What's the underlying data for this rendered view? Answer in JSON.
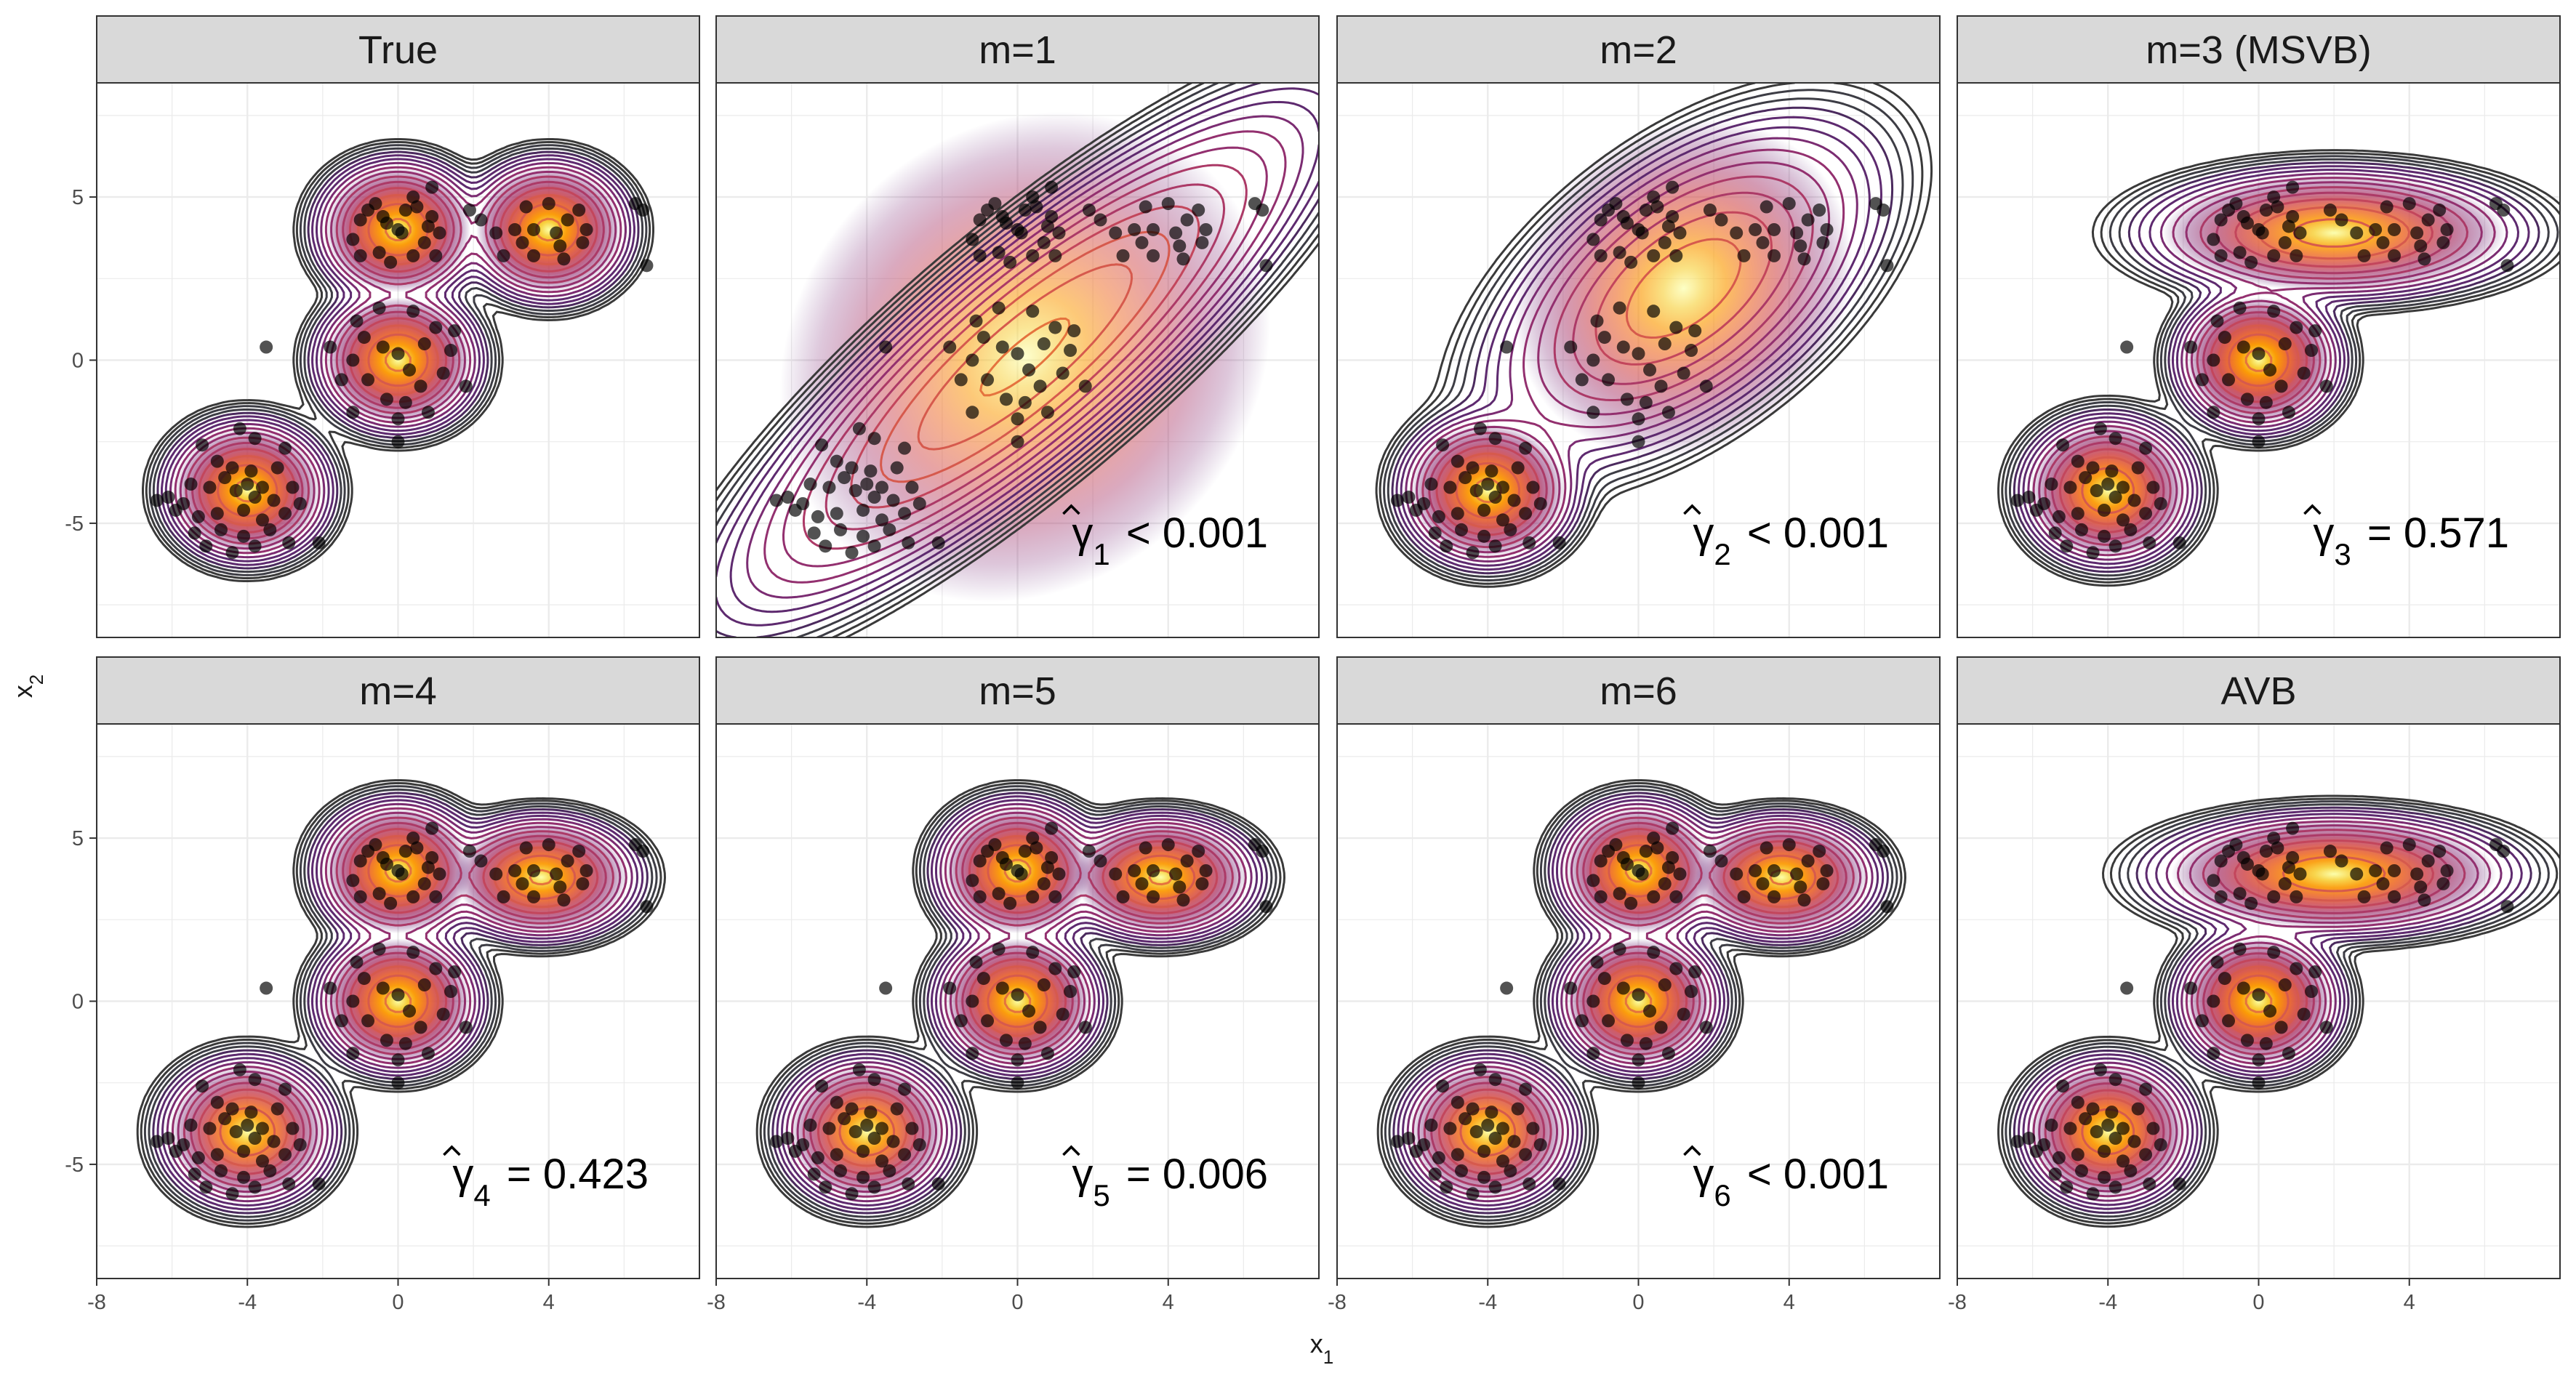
{
  "chart_data": {
    "type": "contour-scatter-facets",
    "xlabel": "x",
    "xlabel_sub": "1",
    "ylabel": "x",
    "ylabel_sub": "2",
    "xlim": [
      -8,
      8
    ],
    "ylim": [
      -8.5,
      8.5
    ],
    "x_ticks": [
      -8,
      -4,
      0,
      4
    ],
    "y_ticks": [
      -5,
      0,
      5
    ],
    "grid": true,
    "palette": [
      "#000004",
      "#1b0c41",
      "#4a0c6b",
      "#781c6d",
      "#a52c60",
      "#cf4446",
      "#ed6925",
      "#fb9b06",
      "#f7d13d",
      "#fcffa4"
    ],
    "panels": [
      {
        "title": "True",
        "annotation": null,
        "components": [
          {
            "mean": [
              0,
              4
            ],
            "sd": [
              0.8,
              0.8
            ],
            "rho": 0,
            "weight": 0.25
          },
          {
            "mean": [
              4,
              4
            ],
            "sd": [
              0.8,
              0.8
            ],
            "rho": 0,
            "weight": 0.25
          },
          {
            "mean": [
              0,
              0
            ],
            "sd": [
              0.8,
              0.8
            ],
            "rho": 0,
            "weight": 0.25
          },
          {
            "mean": [
              -4,
              -4
            ],
            "sd": [
              0.8,
              0.8
            ],
            "rho": 0,
            "weight": 0.25
          }
        ]
      },
      {
        "title": "m=1",
        "annotation": {
          "symbol": "γ",
          "sub": "1",
          "rel": "<",
          "value": "0.001"
        },
        "components": [
          {
            "mean": [
              0.2,
              0.1
            ],
            "sd": [
              2.9,
              2.9
            ],
            "rho": 0.86,
            "weight": 1
          }
        ]
      },
      {
        "title": "m=2",
        "annotation": {
          "symbol": "γ",
          "sub": "2",
          "rel": "<",
          "value": "0.001"
        },
        "components": [
          {
            "mean": [
              1.2,
              2.2
            ],
            "sd": [
              2.0,
              2.0
            ],
            "rho": 0.55,
            "weight": 0.72
          },
          {
            "mean": [
              -4,
              -4
            ],
            "sd": [
              0.85,
              0.85
            ],
            "rho": 0,
            "weight": 0.28
          }
        ]
      },
      {
        "title": "m=3 (MSVB)",
        "annotation": {
          "symbol": "γ",
          "sub": "3",
          "rel": "=",
          "value": "0.571"
        },
        "components": [
          {
            "mean": [
              2,
              3.9
            ],
            "sd": [
              1.9,
              0.75
            ],
            "rho": 0,
            "weight": 0.45
          },
          {
            "mean": [
              0,
              0
            ],
            "sd": [
              0.8,
              0.8
            ],
            "rho": 0,
            "weight": 0.28
          },
          {
            "mean": [
              -4,
              -4
            ],
            "sd": [
              0.85,
              0.85
            ],
            "rho": 0,
            "weight": 0.27
          }
        ]
      },
      {
        "title": "m=4",
        "annotation": {
          "symbol": "γ",
          "sub": "4",
          "rel": "=",
          "value": "0.423"
        },
        "components": [
          {
            "mean": [
              0,
              4
            ],
            "sd": [
              0.8,
              0.8
            ],
            "rho": 0,
            "weight": 0.25
          },
          {
            "mean": [
              3.8,
              3.8
            ],
            "sd": [
              0.95,
              0.7
            ],
            "rho": 0,
            "weight": 0.25
          },
          {
            "mean": [
              0,
              0
            ],
            "sd": [
              0.8,
              0.8
            ],
            "rho": 0,
            "weight": 0.25
          },
          {
            "mean": [
              -4,
              -4
            ],
            "sd": [
              0.85,
              0.85
            ],
            "rho": 0,
            "weight": 0.25
          }
        ]
      },
      {
        "title": "m=5",
        "annotation": {
          "symbol": "γ",
          "sub": "5",
          "rel": "=",
          "value": "0.006"
        },
        "components": [
          {
            "mean": [
              0,
              4
            ],
            "sd": [
              0.8,
              0.8
            ],
            "rho": 0,
            "weight": 0.25
          },
          {
            "mean": [
              3.8,
              3.8
            ],
            "sd": [
              0.95,
              0.7
            ],
            "rho": 0,
            "weight": 0.25
          },
          {
            "mean": [
              0,
              0
            ],
            "sd": [
              0.8,
              0.8
            ],
            "rho": 0,
            "weight": 0.25
          },
          {
            "mean": [
              -4,
              -4
            ],
            "sd": [
              0.85,
              0.85
            ],
            "rho": 0,
            "weight": 0.25
          }
        ]
      },
      {
        "title": "m=6",
        "annotation": {
          "symbol": "γ",
          "sub": "6",
          "rel": "<",
          "value": "0.001"
        },
        "components": [
          {
            "mean": [
              0,
              4
            ],
            "sd": [
              0.8,
              0.8
            ],
            "rho": 0,
            "weight": 0.25
          },
          {
            "mean": [
              3.8,
              3.8
            ],
            "sd": [
              0.95,
              0.7
            ],
            "rho": 0,
            "weight": 0.25
          },
          {
            "mean": [
              0,
              0
            ],
            "sd": [
              0.8,
              0.8
            ],
            "rho": 0,
            "weight": 0.25
          },
          {
            "mean": [
              -4,
              -4
            ],
            "sd": [
              0.85,
              0.85
            ],
            "rho": 0,
            "weight": 0.25
          }
        ]
      },
      {
        "title": "AVB",
        "annotation": null,
        "components": [
          {
            "mean": [
              2,
              3.9
            ],
            "sd": [
              1.8,
              0.7
            ],
            "rho": 0,
            "weight": 0.45
          },
          {
            "mean": [
              0,
              0
            ],
            "sd": [
              0.8,
              0.8
            ],
            "rho": 0,
            "weight": 0.28
          },
          {
            "mean": [
              -4,
              -4
            ],
            "sd": [
              0.85,
              0.85
            ],
            "rho": 0,
            "weight": 0.27
          }
        ]
      }
    ],
    "points": [
      [
        -0.6,
        4.8
      ],
      [
        0.5,
        4.7
      ],
      [
        -1,
        4.3
      ],
      [
        -0.8,
        4.6
      ],
      [
        -0.3,
        4.2
      ],
      [
        0,
        4
      ],
      [
        0.1,
        3.9
      ],
      [
        0.9,
        4.4
      ],
      [
        1.1,
        3.9
      ],
      [
        -1.2,
        3.7
      ],
      [
        -0.5,
        3.3
      ],
      [
        0.4,
        3.2
      ],
      [
        0.7,
        3.6
      ],
      [
        -1.0,
        3.2
      ],
      [
        0.2,
        4.6
      ],
      [
        1.0,
        3.2
      ],
      [
        -0.2,
        3.0
      ],
      [
        0.4,
        5.0
      ],
      [
        0.8,
        4.1
      ],
      [
        -0.4,
        4.4
      ],
      [
        0.9,
        5.3
      ],
      [
        1.9,
        4.6
      ],
      [
        2.2,
        4.3
      ],
      [
        3.4,
        4.7
      ],
      [
        4.0,
        4.8
      ],
      [
        4.8,
        4.6
      ],
      [
        3.1,
        4.0
      ],
      [
        3.6,
        4.0
      ],
      [
        4.2,
        3.9
      ],
      [
        4.5,
        4.3
      ],
      [
        5.0,
        4.0
      ],
      [
        3.3,
        3.6
      ],
      [
        4.3,
        3.5
      ],
      [
        3.6,
        3.2
      ],
      [
        4.4,
        3.1
      ],
      [
        2.8,
        3.2
      ],
      [
        2.6,
        3.9
      ],
      [
        4.9,
        3.6
      ],
      [
        6.3,
        4.8
      ],
      [
        6.5,
        4.6
      ],
      [
        6.6,
        2.9
      ],
      [
        -1.8,
        0.4
      ],
      [
        -1.1,
        1.2
      ],
      [
        -0.5,
        1.6
      ],
      [
        0.4,
        1.5
      ],
      [
        1.0,
        1.0
      ],
      [
        1.4,
        0.3
      ],
      [
        -1.2,
        0.0
      ],
      [
        0.0,
        0.2
      ],
      [
        0.3,
        -0.3
      ],
      [
        -0.4,
        0.4
      ],
      [
        0.7,
        0.5
      ],
      [
        -0.8,
        -0.6
      ],
      [
        0.6,
        -0.8
      ],
      [
        -0.3,
        -1.2
      ],
      [
        0.2,
        -1.3
      ],
      [
        1.2,
        -0.4
      ],
      [
        -0.9,
        0.7
      ],
      [
        1.5,
        0.9
      ],
      [
        -1.5,
        -0.6
      ],
      [
        1.8,
        -0.8
      ],
      [
        0,
        -1.8
      ],
      [
        0,
        -2.5
      ],
      [
        -1.2,
        -1.6
      ],
      [
        0.8,
        -1.6
      ],
      [
        -3.5,
        0.4
      ],
      [
        -4.2,
        -2.1
      ],
      [
        -3.8,
        -2.4
      ],
      [
        -5.2,
        -2.6
      ],
      [
        -3.0,
        -2.7
      ],
      [
        -4.8,
        -3.1
      ],
      [
        -4.4,
        -3.3
      ],
      [
        -3.9,
        -3.4
      ],
      [
        -3.2,
        -3.3
      ],
      [
        -5.5,
        -3.8
      ],
      [
        -5.0,
        -3.9
      ],
      [
        -4.6,
        -3.6
      ],
      [
        -4.0,
        -3.8
      ],
      [
        -3.6,
        -3.9
      ],
      [
        -2.8,
        -3.9
      ],
      [
        -6.1,
        -4.2
      ],
      [
        -5.7,
        -4.4
      ],
      [
        -4.3,
        -4.0
      ],
      [
        -3.8,
        -4.2
      ],
      [
        -3.3,
        -4.3
      ],
      [
        -2.6,
        -4.4
      ],
      [
        -5.9,
        -4.6
      ],
      [
        -5.3,
        -4.8
      ],
      [
        -4.8,
        -4.7
      ],
      [
        -4.1,
        -4.6
      ],
      [
        -3.6,
        -4.9
      ],
      [
        -3.0,
        -4.7
      ],
      [
        -5.4,
        -5.3
      ],
      [
        -4.7,
        -5.2
      ],
      [
        -4.1,
        -5.4
      ],
      [
        -3.4,
        -5.2
      ],
      [
        -5.1,
        -5.7
      ],
      [
        -4.4,
        -5.9
      ],
      [
        -3.8,
        -5.7
      ],
      [
        -2.9,
        -5.6
      ],
      [
        -2.1,
        -5.6
      ],
      [
        -6.4,
        -4.3
      ]
    ]
  }
}
